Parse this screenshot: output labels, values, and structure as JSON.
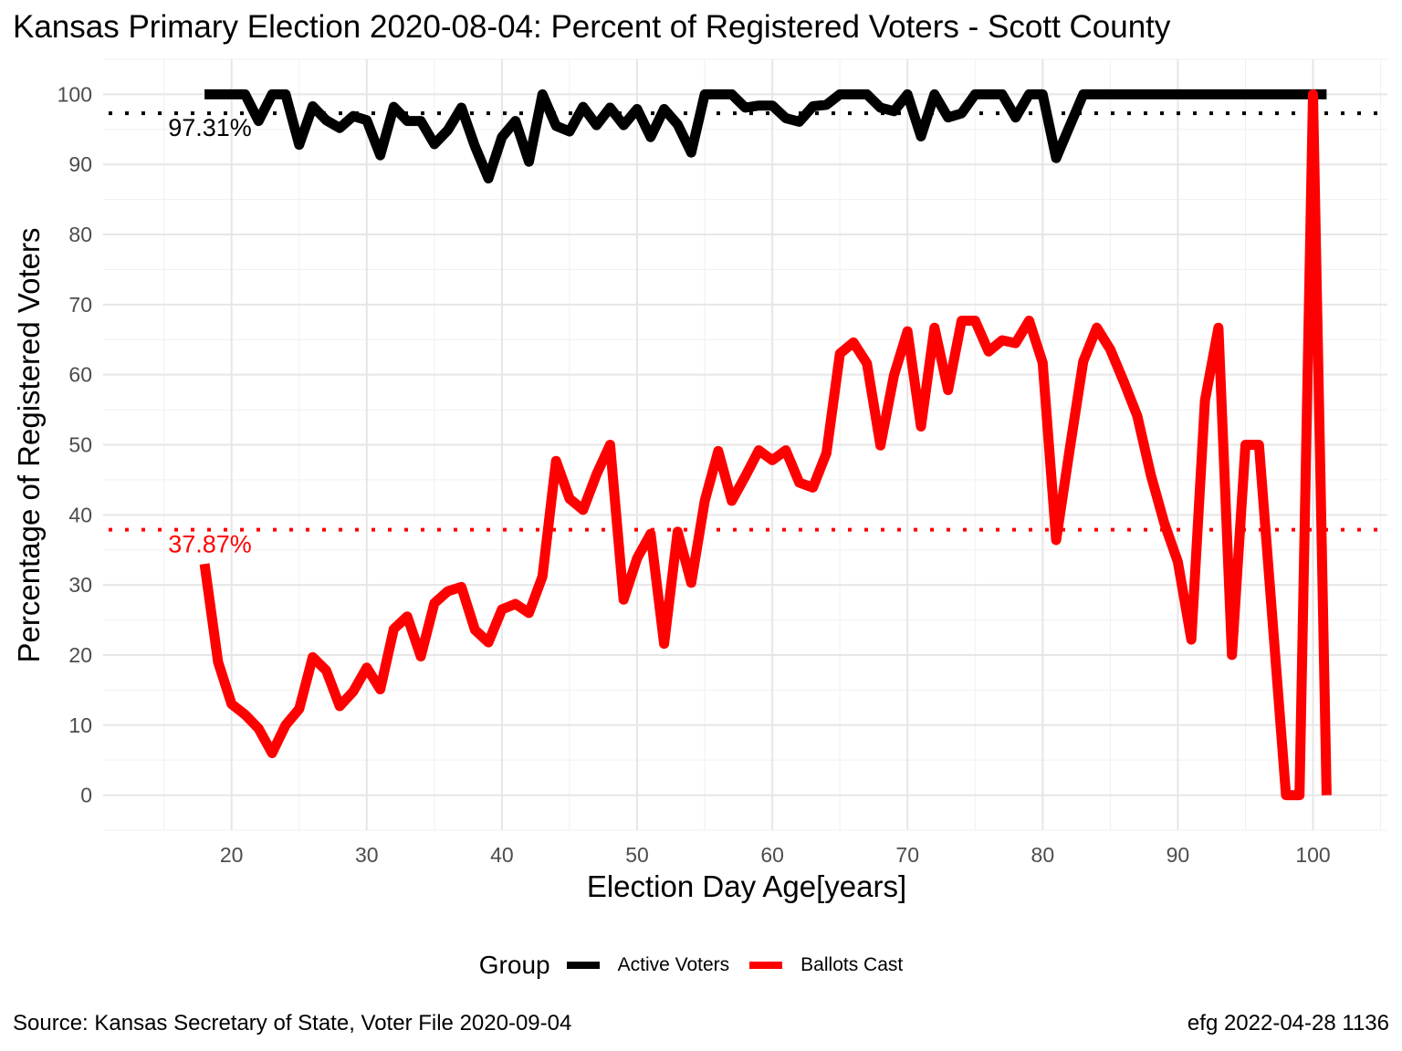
{
  "title": "Kansas Primary Election 2020-08-04:  Percent of Registered Voters - Scott County",
  "source": "Source:  Kansas Secretary of State, Voter File  2020-09-04",
  "stamp": "efg 2022-04-28 1136",
  "legend": {
    "title": "Group",
    "items": [
      {
        "label": "Active Voters",
        "color": "#000000"
      },
      {
        "label": "Ballots Cast",
        "color": "#ff0000"
      }
    ]
  },
  "chart_data": {
    "type": "line",
    "title": "Kansas Primary Election 2020-08-04:  Percent of Registered Voters - Scott County",
    "xlabel": "Election Day Age[years]",
    "ylabel": "Percentage of Registered Voters",
    "xlim": [
      10.5,
      105.5
    ],
    "ylim": [
      -5,
      105
    ],
    "xticks": [
      20,
      30,
      40,
      50,
      60,
      70,
      80,
      90,
      100
    ],
    "yticks": [
      0,
      10,
      20,
      30,
      40,
      50,
      60,
      70,
      80,
      90,
      100
    ],
    "grid": true,
    "legend_position": "bottom",
    "x": [
      18,
      19,
      20,
      21,
      22,
      23,
      24,
      25,
      26,
      27,
      28,
      29,
      30,
      31,
      32,
      33,
      34,
      35,
      36,
      37,
      38,
      39,
      40,
      41,
      42,
      43,
      44,
      45,
      46,
      47,
      48,
      49,
      50,
      51,
      52,
      53,
      54,
      55,
      56,
      57,
      58,
      59,
      60,
      61,
      62,
      63,
      64,
      65,
      66,
      67,
      68,
      69,
      70,
      71,
      72,
      73,
      74,
      75,
      76,
      77,
      78,
      79,
      80,
      81,
      82,
      83,
      84,
      85,
      86,
      87,
      88,
      89,
      90,
      91,
      92,
      93,
      94,
      95,
      96,
      97,
      98,
      99,
      100,
      101
    ],
    "series": [
      {
        "name": "Active Voters",
        "color": "#000000",
        "values": [
          100,
          100,
          100,
          100,
          96.2,
          100,
          100,
          92.8,
          98.3,
          96.3,
          95.2,
          96.9,
          96.3,
          91.3,
          98.2,
          96.2,
          96.2,
          92.9,
          94.9,
          98.1,
          92.6,
          88,
          93.9,
          96.2,
          90.4,
          100,
          95.5,
          94.7,
          98.2,
          95.6,
          98.1,
          95.6,
          97.9,
          93.9,
          97.9,
          95.7,
          91.7,
          100,
          100,
          100,
          98.1,
          98.4,
          98.4,
          96.6,
          96.1,
          98.3,
          98.5,
          100,
          100,
          100,
          98.1,
          97.6,
          100,
          94,
          100,
          96.7,
          97.3,
          100,
          100,
          100,
          96.7,
          100,
          100,
          90.9,
          95.5,
          100,
          100,
          100,
          100,
          100,
          100,
          100,
          100,
          100,
          100,
          100,
          100,
          100,
          100,
          100,
          100,
          100,
          100,
          100
        ]
      },
      {
        "name": "Ballots Cast",
        "color": "#ff0000",
        "values": [
          33,
          19,
          13,
          11.5,
          9.5,
          6,
          10,
          12.3,
          19.7,
          17.8,
          12.7,
          14.8,
          18.2,
          15.1,
          23.7,
          25.5,
          19.8,
          27.4,
          29.1,
          29.7,
          23.6,
          21.8,
          26.5,
          27.3,
          26,
          31.2,
          47.7,
          42.3,
          40.7,
          45.8,
          50,
          27.9,
          33.8,
          37.3,
          21.6,
          37.6,
          30.3,
          42,
          49.1,
          42,
          45.5,
          49.2,
          47.8,
          49.2,
          44.6,
          43.9,
          48.8,
          63,
          64.6,
          61.6,
          49.9,
          59.9,
          66.2,
          52.6,
          66.7,
          57.8,
          67.7,
          67.7,
          63.3,
          64.9,
          64.5,
          67.7,
          61.7,
          36.4,
          49.4,
          61.9,
          66.7,
          63.6,
          59,
          54.1,
          45.7,
          38.8,
          33.3,
          22.2,
          56.3,
          66.7,
          20,
          50,
          50,
          25,
          0,
          0,
          100,
          0
        ]
      }
    ],
    "reference_lines": [
      {
        "series": "Active Voters",
        "y": 97.31,
        "label": "97.31%",
        "color": "#000000",
        "style": "dotted"
      },
      {
        "series": "Ballots Cast",
        "y": 37.87,
        "label": "37.87%",
        "color": "#ff0000",
        "style": "dotted"
      }
    ]
  }
}
